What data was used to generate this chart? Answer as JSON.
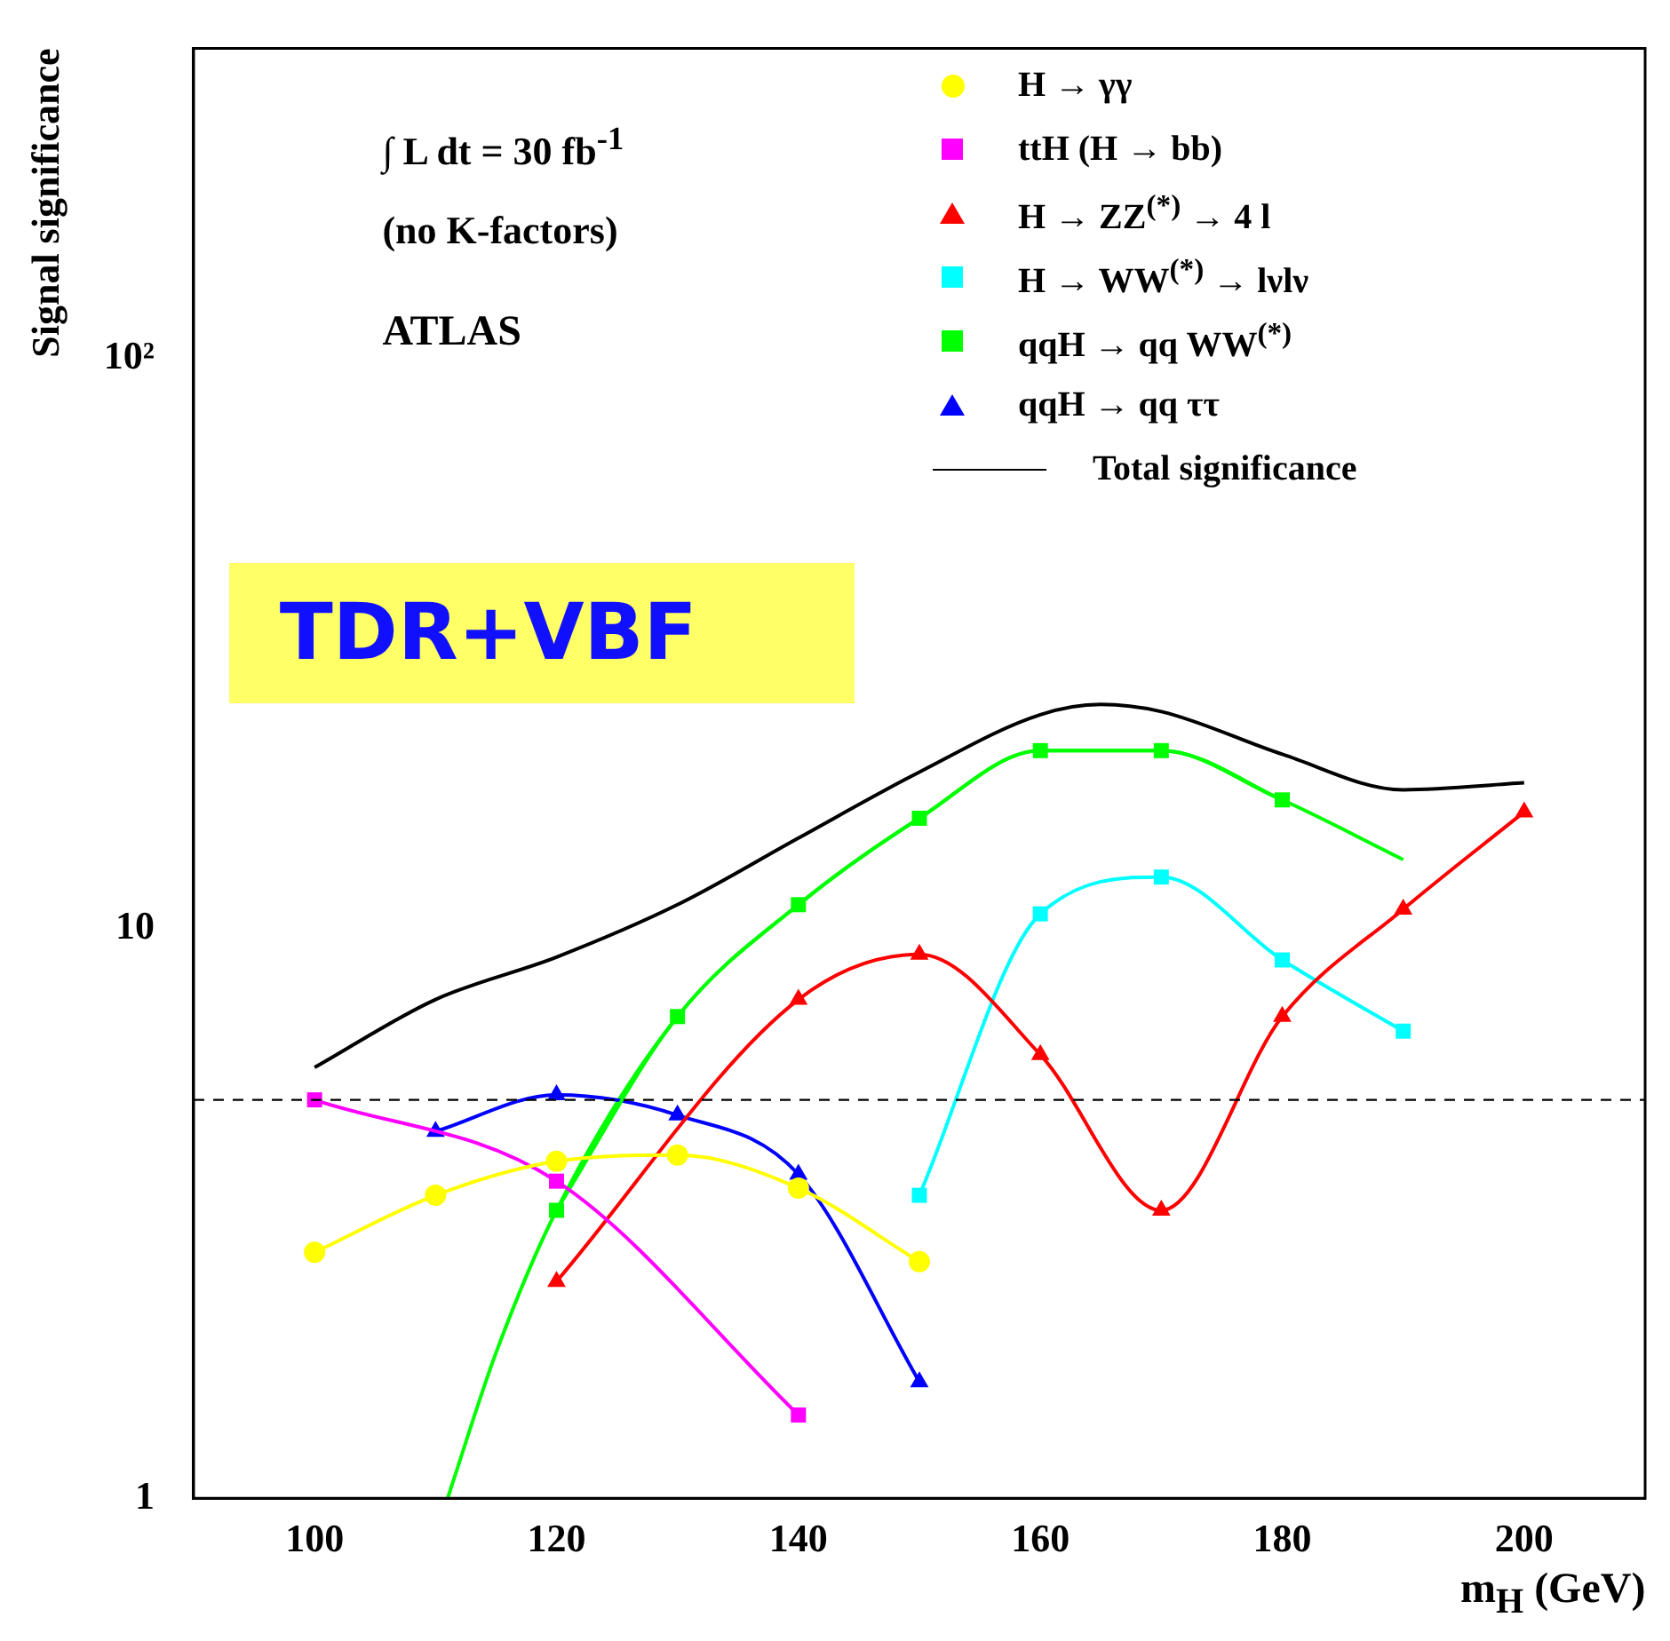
{
  "chart_data": {
    "type": "line",
    "xlabel": "m$_{H}$ (GeV)",
    "ylabel": "Signal significance",
    "xlim": [
      90,
      210
    ],
    "xticks": [
      100,
      120,
      140,
      160,
      180,
      200
    ],
    "ylim": [
      1,
      350
    ],
    "yticks": [
      1,
      10,
      {
        "value": 100,
        "label": "10²"
      }
    ],
    "log": "y",
    "grid": false,
    "legend": "top right",
    "annotations": [
      "∫ L dt = 30 fb$^{-1}$",
      "(no K-factors)",
      "ATLAS",
      "TDR+VBF"
    ],
    "ref_lines": [
      {
        "axis": "y",
        "value": 5,
        "color": "#000000",
        "line_style": "dashed"
      }
    ],
    "series": [
      {
        "name": "H → γγ",
        "color": "#ffff00",
        "marker": "circle",
        "x": [
          100,
          110,
          120,
          130,
          140,
          150
        ],
        "values": [
          2.7,
          3.4,
          3.9,
          4.0,
          3.5,
          2.6
        ]
      },
      {
        "name": "ttH (H → bb)",
        "color": "#ff00ff",
        "marker": "square",
        "x": [
          100,
          120,
          140
        ],
        "values": [
          5.0,
          3.6,
          1.4
        ]
      },
      {
        "name": "H → ZZ$^{(*)}$ → 4 l",
        "color": "#ff0000",
        "marker": "triangle",
        "x": [
          120,
          140,
          150,
          160,
          170,
          180,
          190,
          200
        ],
        "values": [
          2.4,
          7.5,
          9.0,
          6.0,
          3.2,
          7.0,
          10.8,
          16.0
        ]
      },
      {
        "name": "H → WW$^{(*)}$ → lνlν",
        "color": "#00ffff",
        "marker": "square",
        "x": [
          150,
          160,
          170,
          180,
          190
        ],
        "values": [
          3.4,
          10.6,
          12.3,
          8.8,
          6.6
        ]
      },
      {
        "name": "qqH → qq WW$^{(*)}$",
        "color": "#00ff00",
        "marker": "square",
        "x": [
          120,
          130,
          140,
          150,
          160,
          170,
          180
        ],
        "values": [
          3.2,
          7.0,
          11.0,
          15.6,
          20.5,
          20.5,
          16.8
        ]
      },
      {
        "name": "qqH → qq ττ",
        "color": "#0000ff",
        "marker": "triangle",
        "x": [
          110,
          120,
          130,
          140,
          150
        ],
        "values": [
          4.4,
          5.1,
          4.7,
          3.7,
          1.6
        ]
      },
      {
        "color": "#00ff00",
        "marker": "none",
        "x": [
          111,
          115,
          120,
          130,
          140,
          150,
          160,
          170,
          180,
          190
        ],
        "values": [
          1.0,
          1.8,
          3.2,
          7.0,
          11.0,
          15.6,
          20.5,
          20.5,
          16.8,
          13.2
        ]
      },
      {
        "name": "Total significance",
        "color": "#000000",
        "marker": "none",
        "x": [
          100,
          110,
          120,
          130,
          140,
          150,
          160,
          165,
          170,
          180,
          190,
          200
        ],
        "values": [
          5.7,
          7.5,
          8.9,
          11.0,
          14.4,
          18.8,
          23.7,
          24.7,
          24.0,
          20.2,
          17.5,
          18.0
        ]
      }
    ]
  }
}
